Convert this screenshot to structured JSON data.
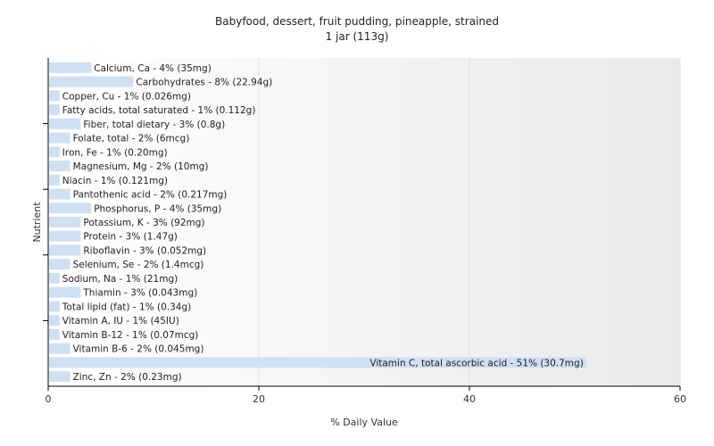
{
  "chart_data": {
    "type": "bar",
    "orientation": "horizontal",
    "title": "Babyfood, dessert, fruit pudding, pineapple, strained",
    "subtitle": "1 jar (113g)",
    "xlabel": "% Daily Value",
    "ylabel": "Nutrient",
    "xlim": [
      0,
      60
    ],
    "xticks": [
      "0",
      "20",
      "40",
      "60"
    ],
    "grid": true,
    "legend": "none",
    "colors": {
      "bar": "#cfe0f3",
      "plot_bg_edge": "#e9e9e9",
      "axis": "#000000"
    },
    "categories": [
      "Calcium, Ca",
      "Carbohydrates",
      "Copper, Cu",
      "Fatty acids, total saturated",
      "Fiber, total dietary",
      "Folate, total",
      "Iron, Fe",
      "Magnesium, Mg",
      "Niacin",
      "Pantothenic acid",
      "Phosphorus, P",
      "Potassium, K",
      "Protein",
      "Riboflavin",
      "Selenium, Se",
      "Sodium, Na",
      "Thiamin",
      "Total lipid (fat)",
      "Vitamin A, IU",
      "Vitamin B-12",
      "Vitamin B-6",
      "Vitamin C, total ascorbic acid",
      "Zinc, Zn"
    ],
    "values": [
      4,
      8,
      1,
      1,
      3,
      2,
      1,
      2,
      1,
      2,
      4,
      3,
      3,
      3,
      2,
      1,
      3,
      1,
      1,
      1,
      2,
      51,
      2
    ],
    "labels": [
      "Calcium, Ca - 4% (35mg)",
      "Carbohydrates - 8% (22.94g)",
      "Copper, Cu - 1% (0.026mg)",
      "Fatty acids, total saturated - 1% (0.112g)",
      "Fiber, total dietary - 3% (0.8g)",
      "Folate, total - 2% (6mcg)",
      "Iron, Fe - 1% (0.20mg)",
      "Magnesium, Mg - 2% (10mg)",
      "Niacin - 1% (0.121mg)",
      "Pantothenic acid - 2% (0.217mg)",
      "Phosphorus, P - 4% (35mg)",
      "Potassium, K - 3% (92mg)",
      "Protein - 3% (1.47g)",
      "Riboflavin - 3% (0.052mg)",
      "Selenium, Se - 2% (1.4mcg)",
      "Sodium, Na - 1% (21mg)",
      "Thiamin - 3% (0.043mg)",
      "Total lipid (fat) - 1% (0.34g)",
      "Vitamin A, IU - 1% (45IU)",
      "Vitamin B-12 - 1% (0.07mcg)",
      "Vitamin B-6 - 2% (0.045mg)",
      "Vitamin C, total ascorbic acid - 51% (30.7mg)",
      "Zinc, Zn - 2% (0.23mg)"
    ]
  }
}
